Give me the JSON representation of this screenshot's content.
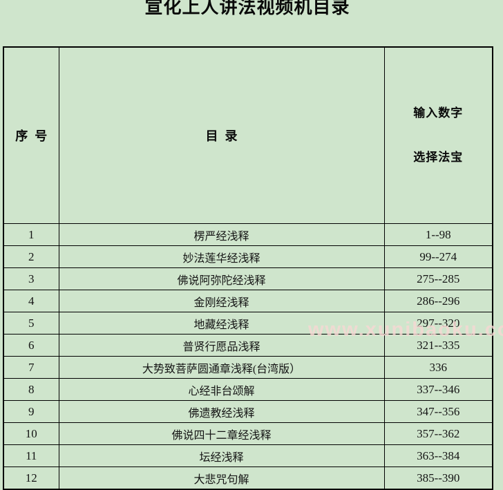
{
  "page": {
    "title": "宣化上人讲法视频机目录",
    "background_color": "#cfe5cc",
    "border_color": "#000000"
  },
  "table": {
    "headers": {
      "index": "序  号",
      "catalog": "目  录",
      "selection_line1": "输入数字",
      "selection_line2": "选择法宝"
    },
    "rows": [
      {
        "no": "1",
        "title": "楞严经浅释",
        "range": "1--98"
      },
      {
        "no": "2",
        "title": "妙法莲华经浅释",
        "range": "99--274"
      },
      {
        "no": "3",
        "title": "佛说阿弥陀经浅释",
        "range": "275--285"
      },
      {
        "no": "4",
        "title": "金刚经浅释",
        "range": "286--296"
      },
      {
        "no": "5",
        "title": "地藏经浅释",
        "range": "297--320"
      },
      {
        "no": "6",
        "title": "普贤行愿品浅释",
        "range": "321--335"
      },
      {
        "no": "7",
        "title": "大势致菩萨圆通章浅释(台湾版）",
        "range": "336"
      },
      {
        "no": "8",
        "title": "心经非台颂解",
        "range": "337--346"
      },
      {
        "no": "9",
        "title": "佛遗教经浅释",
        "range": "347--356"
      },
      {
        "no": "10",
        "title": "佛说四十二章经浅释",
        "range": "357--362"
      },
      {
        "no": "11",
        "title": "坛经浅释",
        "range": "363--384"
      },
      {
        "no": "12",
        "title": "大悲咒句解",
        "range": "385--390"
      }
    ]
  },
  "watermark": {
    "text": "www.xunibaoku.com",
    "color": "#f7d8d4"
  }
}
